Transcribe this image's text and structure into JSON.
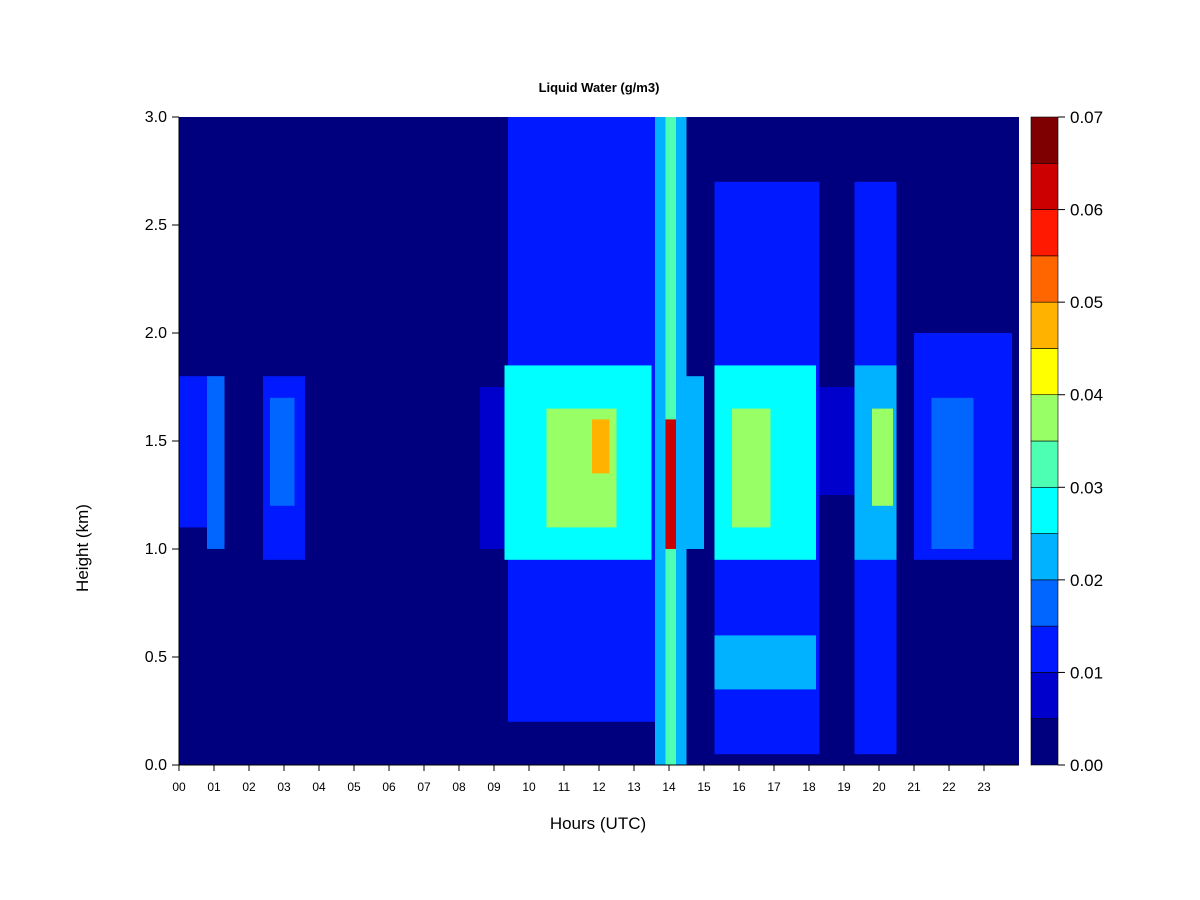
{
  "chart_data": {
    "type": "heatmap",
    "title": "Liquid Water (g/m3)",
    "xlabel": "Hours (UTC)",
    "ylabel": "Height (km)",
    "xlim": [
      0,
      24
    ],
    "ylim": [
      0,
      3
    ],
    "x_ticks": [
      "00",
      "01",
      "02",
      "03",
      "04",
      "05",
      "06",
      "07",
      "08",
      "09",
      "10",
      "11",
      "12",
      "13",
      "14",
      "15",
      "16",
      "17",
      "18",
      "19",
      "20",
      "21",
      "22",
      "23"
    ],
    "y_ticks": [
      "0.0",
      "0.5",
      "1.0",
      "1.5",
      "2.0",
      "2.5",
      "3.0"
    ],
    "colorbar": {
      "levels": [
        0.0,
        0.005,
        0.01,
        0.015,
        0.02,
        0.025,
        0.03,
        0.035,
        0.04,
        0.045,
        0.05,
        0.055,
        0.06,
        0.065,
        0.07
      ],
      "tick_labels": [
        "0.00",
        "0.01",
        "0.02",
        "0.03",
        "0.04",
        "0.05",
        "0.06",
        "0.07"
      ],
      "colors": [
        "#00007f",
        "#0000cc",
        "#0019ff",
        "#0066ff",
        "#00b2ff",
        "#00ffff",
        "#4dffb2",
        "#99ff66",
        "#ffff00",
        "#ffb200",
        "#ff6600",
        "#ff1900",
        "#cc0000",
        "#7f0000"
      ]
    },
    "features": [
      {
        "hours": [
          0.0,
          1.2
        ],
        "height_km": [
          1.1,
          1.8
        ],
        "value": 0.01
      },
      {
        "hours": [
          0.8,
          1.3
        ],
        "height_km": [
          1.0,
          1.8
        ],
        "value": 0.015
      },
      {
        "hours": [
          2.4,
          3.6
        ],
        "height_km": [
          0.95,
          1.8
        ],
        "value": 0.012
      },
      {
        "hours": [
          2.6,
          3.3
        ],
        "height_km": [
          1.2,
          1.7
        ],
        "value": 0.017
      },
      {
        "hours": [
          8.6,
          9.5
        ],
        "height_km": [
          1.0,
          1.75
        ],
        "value": 0.008
      },
      {
        "hours": [
          9.4,
          13.6
        ],
        "height_km": [
          0.2,
          3.0
        ],
        "value": 0.01
      },
      {
        "hours": [
          9.3,
          13.5
        ],
        "height_km": [
          0.95,
          1.85
        ],
        "value": 0.025
      },
      {
        "hours": [
          10.5,
          12.5
        ],
        "height_km": [
          1.1,
          1.65
        ],
        "value": 0.037
      },
      {
        "hours": [
          11.8,
          12.3
        ],
        "height_km": [
          1.35,
          1.6
        ],
        "value": 0.047
      },
      {
        "hours": [
          13.6,
          14.5
        ],
        "height_km": [
          0.0,
          3.0
        ],
        "value": 0.022
      },
      {
        "hours": [
          13.9,
          14.2
        ],
        "height_km": [
          0.0,
          3.0
        ],
        "value": 0.03
      },
      {
        "hours": [
          13.9,
          14.2
        ],
        "height_km": [
          1.0,
          1.6
        ],
        "value": 0.06
      },
      {
        "hours": [
          14.5,
          15.0
        ],
        "height_km": [
          1.0,
          1.8
        ],
        "value": 0.02
      },
      {
        "hours": [
          15.3,
          18.3
        ],
        "height_km": [
          0.05,
          2.7
        ],
        "value": 0.01
      },
      {
        "hours": [
          15.3,
          18.2
        ],
        "height_km": [
          0.95,
          1.85
        ],
        "value": 0.025
      },
      {
        "hours": [
          15.8,
          16.9
        ],
        "height_km": [
          1.1,
          1.65
        ],
        "value": 0.037
      },
      {
        "hours": [
          15.3,
          18.2
        ],
        "height_km": [
          0.35,
          0.6
        ],
        "value": 0.02
      },
      {
        "hours": [
          18.3,
          19.3
        ],
        "height_km": [
          1.25,
          1.75
        ],
        "value": 0.008
      },
      {
        "hours": [
          19.3,
          20.5
        ],
        "height_km": [
          0.05,
          2.7
        ],
        "value": 0.01
      },
      {
        "hours": [
          19.3,
          20.5
        ],
        "height_km": [
          0.95,
          1.85
        ],
        "value": 0.022
      },
      {
        "hours": [
          19.8,
          20.4
        ],
        "height_km": [
          1.2,
          1.65
        ],
        "value": 0.035
      },
      {
        "hours": [
          21.0,
          23.8
        ],
        "height_km": [
          0.95,
          2.0
        ],
        "value": 0.01
      },
      {
        "hours": [
          21.5,
          22.7
        ],
        "height_km": [
          1.0,
          1.7
        ],
        "value": 0.018
      }
    ]
  }
}
